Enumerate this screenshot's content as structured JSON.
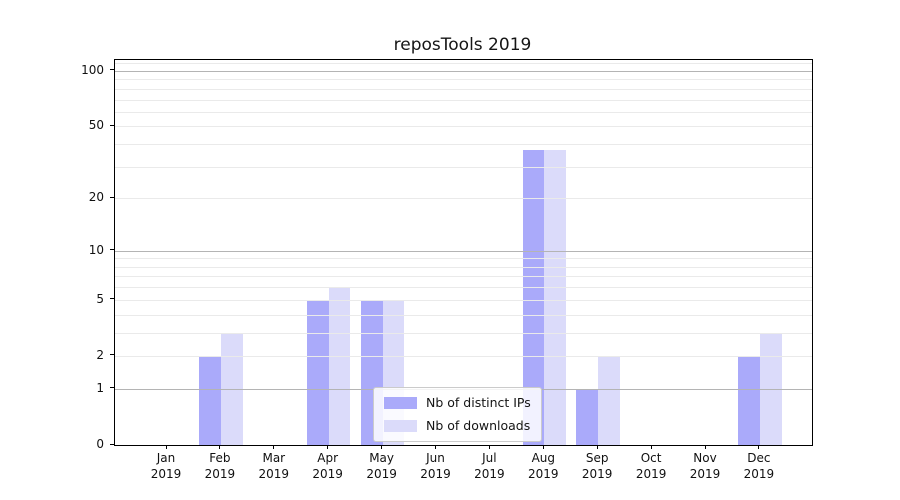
{
  "chart_data": {
    "type": "bar",
    "title": "reposTools 2019",
    "categories": [
      "Jan",
      "Feb",
      "Mar",
      "Apr",
      "May",
      "Jun",
      "Jul",
      "Aug",
      "Sep",
      "Oct",
      "Nov",
      "Dec"
    ],
    "year_label": "2019",
    "series": [
      {
        "name": "Nb of distinct IPs",
        "color": "#aaaafa",
        "values": [
          0,
          2,
          0,
          5,
          5,
          0,
          0,
          37,
          1,
          0,
          0,
          2
        ]
      },
      {
        "name": "Nb of downloads",
        "color": "#dbdbfa",
        "values": [
          0,
          3,
          0,
          6,
          5,
          0,
          0,
          37,
          2,
          0,
          0,
          3
        ]
      }
    ],
    "yscale": "log1p",
    "ylim": [
      0,
      114
    ],
    "yticks": [
      0,
      1,
      2,
      5,
      10,
      20,
      50,
      100
    ],
    "grid": {
      "on": true,
      "major_lines": [
        1,
        10,
        100
      ],
      "minor_lines": [
        2,
        3,
        4,
        5,
        6,
        7,
        8,
        9,
        20,
        30,
        40,
        50,
        60,
        70,
        80,
        90,
        110
      ],
      "major_color": "#b4b4b4",
      "minor_color": "#eaeaea"
    },
    "legend": {
      "position": "inside-bottom-center",
      "entries": [
        "Nb of distinct IPs",
        "Nb of downloads"
      ]
    }
  }
}
